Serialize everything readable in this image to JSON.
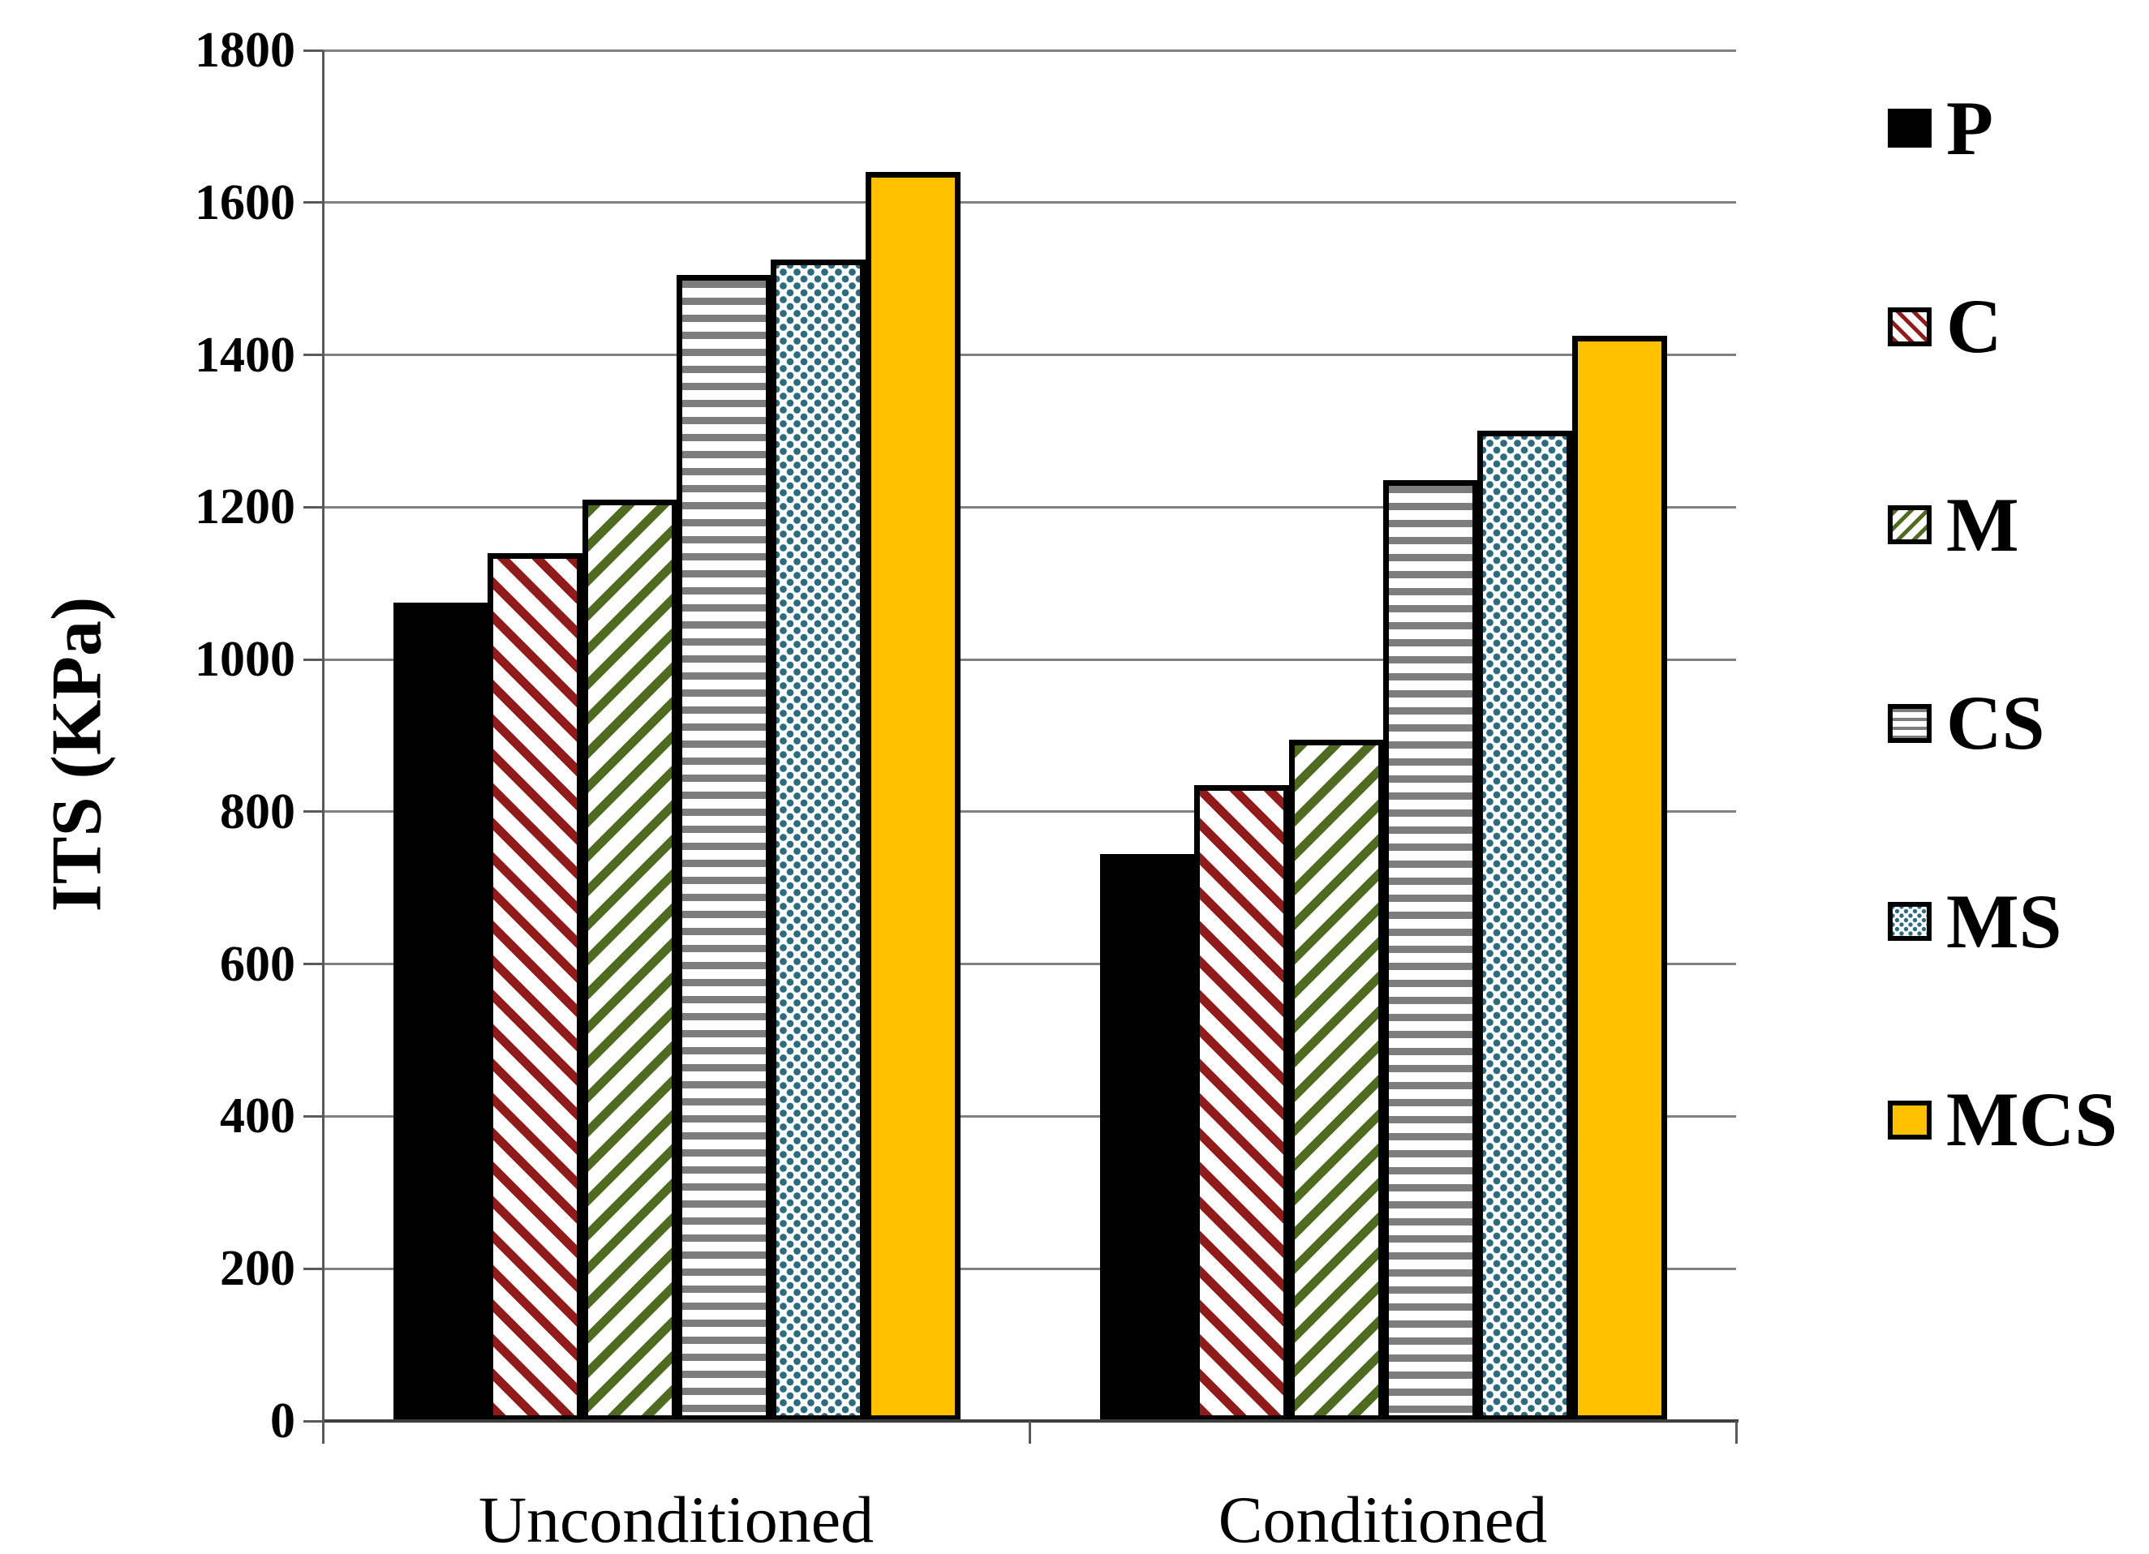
{
  "chart_data": {
    "type": "bar",
    "title": "",
    "xlabel": "",
    "ylabel": "ITS (KPa)",
    "ylim": [
      0,
      1800
    ],
    "ytick_step": 200,
    "yticks": [
      0,
      200,
      400,
      600,
      800,
      1000,
      1200,
      1400,
      1600,
      1800
    ],
    "ytick_labels": [
      "0",
      "200",
      "400",
      "600",
      "800",
      "1000",
      "1200",
      "1400",
      "1600",
      "1800"
    ],
    "categories": [
      "Unconditioned",
      "Conditioned"
    ],
    "series": [
      {
        "name": "P",
        "pattern": "solid-black",
        "values": [
          1075,
          745
        ]
      },
      {
        "name": "C",
        "pattern": "red-diagonal-down",
        "values": [
          1140,
          835
        ]
      },
      {
        "name": "M",
        "pattern": "green-diagonal-up",
        "values": [
          1210,
          895
        ]
      },
      {
        "name": "CS",
        "pattern": "gray-horizontal-lines",
        "values": [
          1505,
          1235
        ]
      },
      {
        "name": "MS",
        "pattern": "teal-dots",
        "values": [
          1525,
          1300
        ]
      },
      {
        "name": "MCS",
        "pattern": "solid-gold",
        "values": [
          1640,
          1425
        ]
      }
    ],
    "legend_position": "right",
    "grid": true
  },
  "colors": {
    "gold": "#FFC000",
    "red": "#911A1A",
    "green": "#4E6B1F",
    "gray": "#7D7D7D",
    "teal": "#2D6B7E",
    "black": "#000000",
    "gridline": "#808080",
    "axis": "#595959"
  }
}
